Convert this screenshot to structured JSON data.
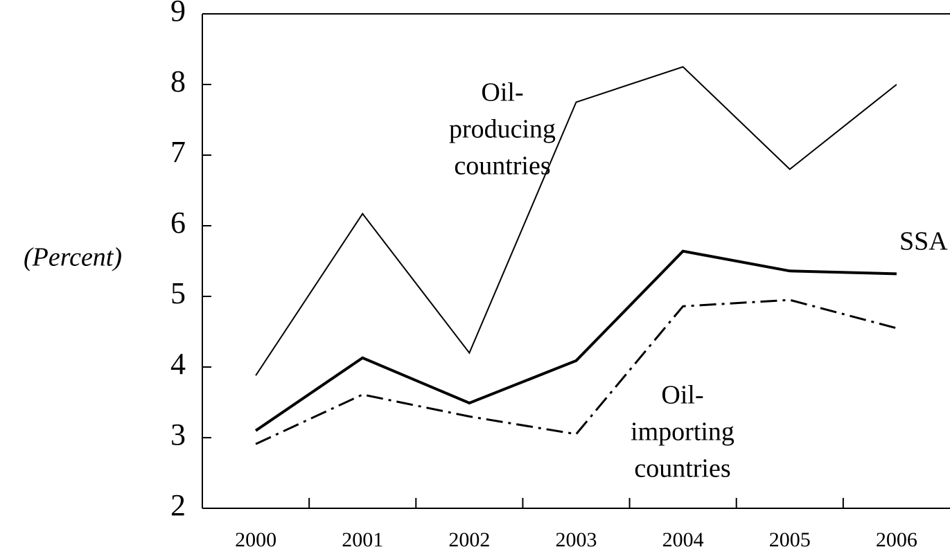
{
  "chart_data": {
    "type": "line",
    "ylabel": "(Percent)",
    "categories": [
      "2000",
      "2001",
      "2002",
      "2003",
      "2004",
      "2005",
      "2006"
    ],
    "series": [
      {
        "label": [
          "Oil-",
          "producing",
          "countries"
        ],
        "color": "#000000",
        "line_style": "solid",
        "line_width": 2,
        "values": [
          3.88,
          6.17,
          4.2,
          7.75,
          8.25,
          6.8,
          8.0
        ]
      },
      {
        "label": [
          "SSA"
        ],
        "color": "#000000",
        "line_style": "solid",
        "line_width": 4,
        "values": [
          3.1,
          4.13,
          3.49,
          4.09,
          5.64,
          5.36,
          5.32
        ]
      },
      {
        "label": [
          "Oil-",
          "importing",
          "countries"
        ],
        "color": "#000000",
        "line_style": "dashdot",
        "line_width": 3,
        "values": [
          2.91,
          3.61,
          3.3,
          3.05,
          4.86,
          4.95,
          4.55
        ]
      }
    ],
    "ylim": [
      2,
      9
    ],
    "yticks": [
      2,
      3,
      4,
      5,
      6,
      7,
      8,
      9
    ],
    "grid": false
  }
}
